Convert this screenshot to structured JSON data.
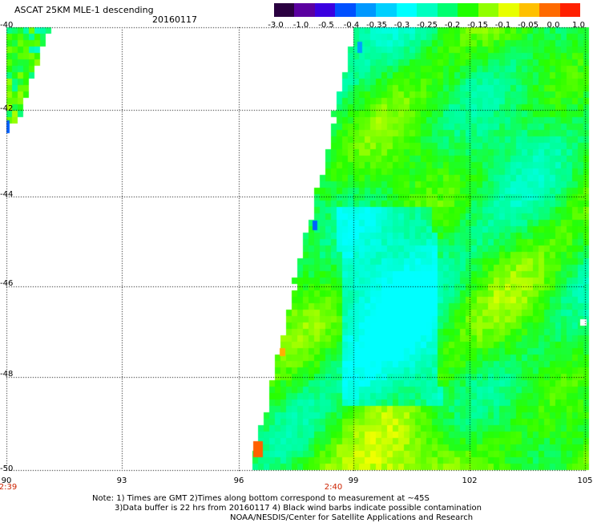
{
  "header": {
    "title": "ASCAT 25KM MLE-1 descending",
    "date": "20160117"
  },
  "colorbar": {
    "labels": [
      "-3.0",
      "-1.0",
      "-0.5",
      "-0.4",
      "-0.35",
      "-0.3",
      "-0.25",
      "-0.2",
      "-0.15",
      "-0.1",
      "-0.05",
      "0.0",
      "1.0"
    ],
    "colors": [
      "#2a0040",
      "#5a00a0",
      "#3a00e0",
      "#0050ff",
      "#0098ff",
      "#00d0ff",
      "#00ffff",
      "#00ffc0",
      "#00ff70",
      "#20ff00",
      "#90ff00",
      "#e8ff00",
      "#ffc000",
      "#ff6a00",
      "#ff2000"
    ]
  },
  "axes": {
    "lat_labels": [
      "-40",
      "-42",
      "-44",
      "-46",
      "-48",
      "-50"
    ],
    "lon_labels": [
      "90",
      "93",
      "96",
      "99",
      "102",
      "105"
    ],
    "time_labels": [
      "2:39",
      "2:40"
    ]
  },
  "notes": {
    "line1": "Note: 1) Times are GMT 2)Times along bottom correspond to measurement at ~45S",
    "line2": "3)Data buffer is 22 hrs from 20160117 4) Black wind barbs indicate possible contamination",
    "line3": "NOAA/NESDIS/Center for Satellite Applications and Research"
  }
}
